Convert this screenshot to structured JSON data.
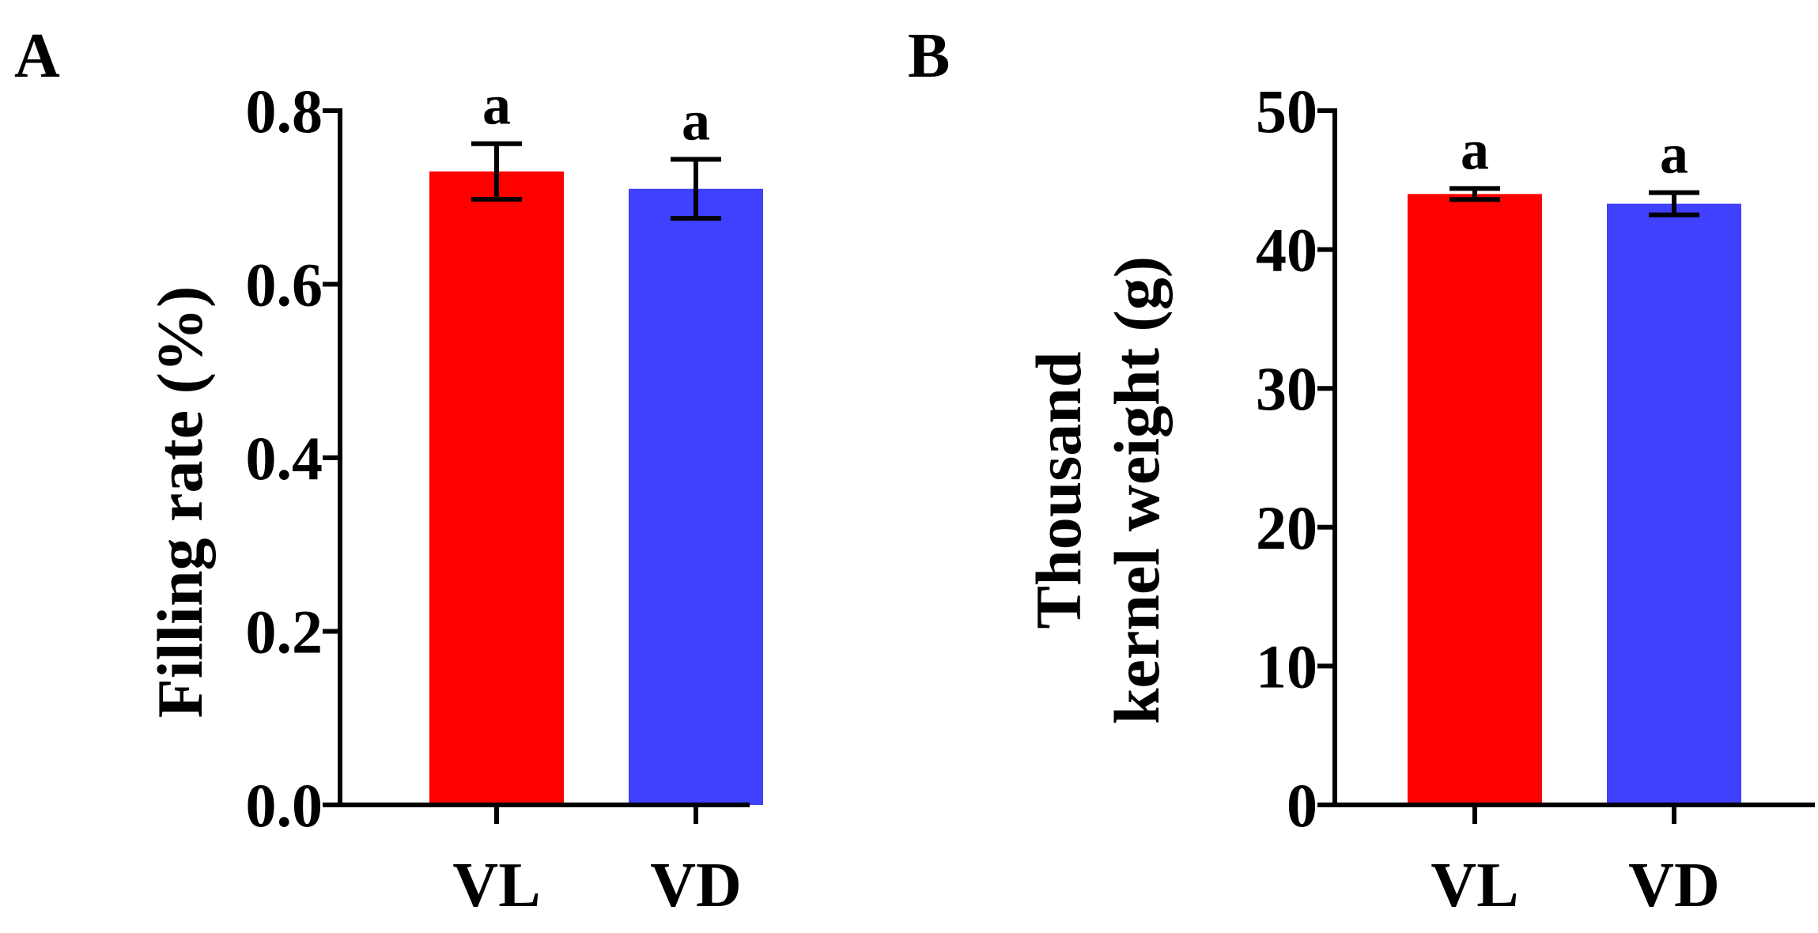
{
  "chart_data": [
    {
      "type": "bar",
      "panel_label": "A",
      "categories": [
        "VL",
        "VD"
      ],
      "values": [
        0.73,
        0.71
      ],
      "errors": [
        0.032,
        0.034
      ],
      "significance": [
        "a",
        "a"
      ],
      "bar_colors": [
        "#ff0000",
        "#4040ff"
      ],
      "title": "",
      "xlabel": "",
      "ylabel": "Filling rate (%)",
      "ylim": [
        0,
        0.8
      ],
      "yticks": [
        0.0,
        0.2,
        0.4,
        0.6,
        0.8
      ],
      "ytick_labels": [
        "0.0",
        "0.2",
        "0.4",
        "0.6",
        "0.8"
      ],
      "grid": false
    },
    {
      "type": "bar",
      "panel_label": "B",
      "categories": [
        "VL",
        "VD"
      ],
      "values": [
        44.0,
        43.3
      ],
      "errors": [
        0.4,
        0.8
      ],
      "significance": [
        "a",
        "a"
      ],
      "bar_colors": [
        "#ff0000",
        "#4040ff"
      ],
      "title": "",
      "xlabel": "",
      "ylabel": [
        "Thousand",
        "kernel weight (g)"
      ],
      "ylim": [
        0,
        50
      ],
      "yticks": [
        0,
        10,
        20,
        30,
        40,
        50
      ],
      "ytick_labels": [
        "0",
        "10",
        "20",
        "30",
        "40",
        "50"
      ],
      "grid": false
    }
  ]
}
